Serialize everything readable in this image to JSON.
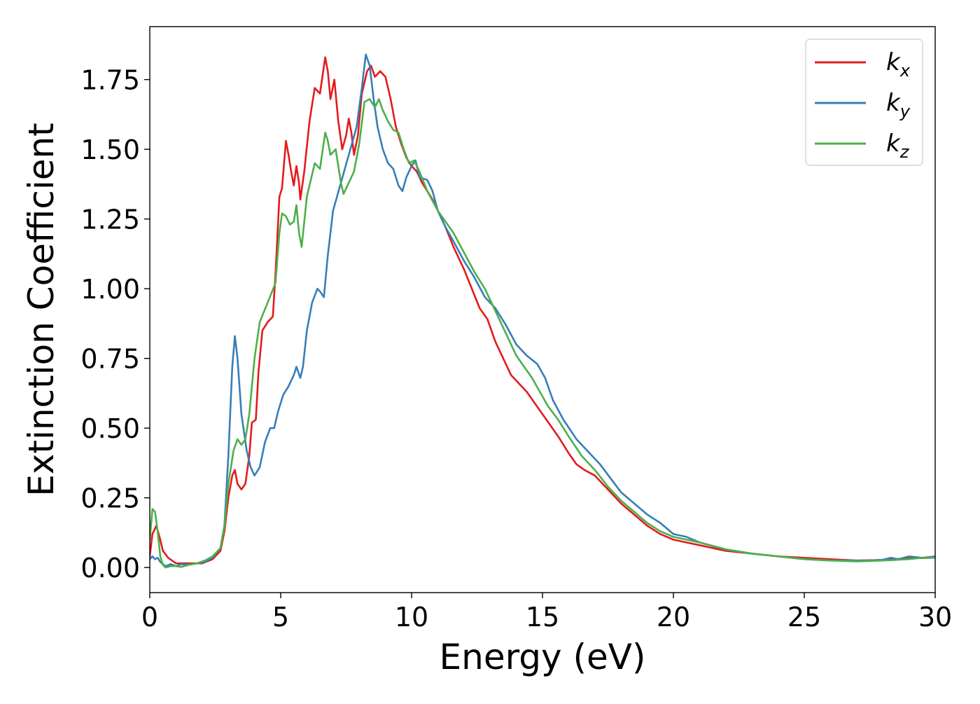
{
  "chart_data": {
    "type": "line",
    "title": "",
    "xlabel": "Energy (eV)",
    "ylabel": "Extinction Coefficient",
    "xlim": [
      0,
      30
    ],
    "ylim": [
      -0.09,
      1.94
    ],
    "xticks": [
      0,
      5,
      10,
      15,
      20,
      25,
      30
    ],
    "xtick_labels": [
      "0",
      "5",
      "10",
      "15",
      "20",
      "25",
      "30"
    ],
    "yticks": [
      0.0,
      0.25,
      0.5,
      0.75,
      1.0,
      1.25,
      1.5,
      1.75
    ],
    "ytick_labels": [
      "0.00",
      "0.25",
      "0.50",
      "0.75",
      "1.00",
      "1.25",
      "1.50",
      "1.75"
    ],
    "grid": false,
    "legend": {
      "position": "top-right"
    },
    "series": [
      {
        "name": "k_x",
        "legend_base": "k",
        "legend_sub": "x",
        "color": "#e41a1c",
        "points": [
          [
            0,
            0.04
          ],
          [
            0.1,
            0.12
          ],
          [
            0.25,
            0.15
          ],
          [
            0.4,
            0.1
          ],
          [
            0.5,
            0.06
          ],
          [
            0.7,
            0.035
          ],
          [
            1.0,
            0.015
          ],
          [
            1.3,
            0.015
          ],
          [
            1.6,
            0.015
          ],
          [
            2.0,
            0.015
          ],
          [
            2.4,
            0.03
          ],
          [
            2.7,
            0.06
          ],
          [
            2.85,
            0.13
          ],
          [
            3.0,
            0.25
          ],
          [
            3.15,
            0.33
          ],
          [
            3.25,
            0.35
          ],
          [
            3.35,
            0.3
          ],
          [
            3.5,
            0.28
          ],
          [
            3.65,
            0.3
          ],
          [
            3.8,
            0.4
          ],
          [
            3.9,
            0.52
          ],
          [
            4.05,
            0.53
          ],
          [
            4.15,
            0.7
          ],
          [
            4.3,
            0.85
          ],
          [
            4.5,
            0.88
          ],
          [
            4.7,
            0.9
          ],
          [
            4.8,
            1.05
          ],
          [
            4.95,
            1.33
          ],
          [
            5.05,
            1.36
          ],
          [
            5.2,
            1.53
          ],
          [
            5.3,
            1.48
          ],
          [
            5.4,
            1.42
          ],
          [
            5.5,
            1.37
          ],
          [
            5.6,
            1.44
          ],
          [
            5.7,
            1.38
          ],
          [
            5.75,
            1.32
          ],
          [
            5.9,
            1.42
          ],
          [
            6.1,
            1.6
          ],
          [
            6.3,
            1.72
          ],
          [
            6.5,
            1.7
          ],
          [
            6.7,
            1.83
          ],
          [
            6.8,
            1.78
          ],
          [
            6.9,
            1.68
          ],
          [
            7.05,
            1.75
          ],
          [
            7.2,
            1.6
          ],
          [
            7.35,
            1.5
          ],
          [
            7.5,
            1.55
          ],
          [
            7.6,
            1.61
          ],
          [
            7.7,
            1.56
          ],
          [
            7.8,
            1.48
          ],
          [
            7.95,
            1.55
          ],
          [
            8.1,
            1.7
          ],
          [
            8.3,
            1.78
          ],
          [
            8.45,
            1.8
          ],
          [
            8.6,
            1.76
          ],
          [
            8.8,
            1.78
          ],
          [
            9.0,
            1.76
          ],
          [
            9.2,
            1.68
          ],
          [
            9.4,
            1.58
          ],
          [
            9.6,
            1.52
          ],
          [
            9.8,
            1.47
          ],
          [
            10.0,
            1.44
          ],
          [
            10.2,
            1.42
          ],
          [
            10.4,
            1.38
          ],
          [
            10.6,
            1.35
          ],
          [
            10.8,
            1.32
          ],
          [
            11.0,
            1.28
          ],
          [
            11.3,
            1.22
          ],
          [
            11.6,
            1.15
          ],
          [
            12.0,
            1.07
          ],
          [
            12.3,
            1.0
          ],
          [
            12.6,
            0.93
          ],
          [
            12.9,
            0.89
          ],
          [
            13.2,
            0.81
          ],
          [
            13.5,
            0.75
          ],
          [
            13.8,
            0.69
          ],
          [
            14.1,
            0.66
          ],
          [
            14.4,
            0.63
          ],
          [
            14.7,
            0.59
          ],
          [
            15.0,
            0.55
          ],
          [
            15.3,
            0.51
          ],
          [
            15.6,
            0.47
          ],
          [
            16.0,
            0.41
          ],
          [
            16.3,
            0.37
          ],
          [
            16.6,
            0.35
          ],
          [
            17.0,
            0.33
          ],
          [
            17.5,
            0.28
          ],
          [
            18.0,
            0.23
          ],
          [
            18.5,
            0.19
          ],
          [
            19.0,
            0.15
          ],
          [
            19.5,
            0.12
          ],
          [
            20.0,
            0.1
          ],
          [
            20.5,
            0.09
          ],
          [
            21.0,
            0.08
          ],
          [
            22.0,
            0.06
          ],
          [
            23.0,
            0.05
          ],
          [
            24.0,
            0.04
          ],
          [
            25.0,
            0.035
          ],
          [
            26.0,
            0.03
          ],
          [
            27.0,
            0.025
          ],
          [
            28.0,
            0.027
          ],
          [
            29.0,
            0.033
          ],
          [
            30.0,
            0.035
          ]
        ]
      },
      {
        "name": "k_y",
        "legend_base": "k",
        "legend_sub": "y",
        "color": "#377eb8",
        "points": [
          [
            0,
            0.03
          ],
          [
            0.1,
            0.04
          ],
          [
            0.2,
            0.03
          ],
          [
            0.3,
            0.035
          ],
          [
            0.4,
            0.02
          ],
          [
            0.6,
            0.005
          ],
          [
            0.8,
            0.012
          ],
          [
            1.0,
            0.005
          ],
          [
            1.2,
            0.012
          ],
          [
            1.5,
            0.01
          ],
          [
            1.8,
            0.015
          ],
          [
            2.1,
            0.02
          ],
          [
            2.4,
            0.035
          ],
          [
            2.7,
            0.07
          ],
          [
            2.85,
            0.15
          ],
          [
            3.0,
            0.4
          ],
          [
            3.15,
            0.72
          ],
          [
            3.25,
            0.83
          ],
          [
            3.35,
            0.75
          ],
          [
            3.5,
            0.55
          ],
          [
            3.7,
            0.42
          ],
          [
            3.85,
            0.36
          ],
          [
            4.0,
            0.33
          ],
          [
            4.2,
            0.36
          ],
          [
            4.4,
            0.45
          ],
          [
            4.6,
            0.5
          ],
          [
            4.75,
            0.5
          ],
          [
            4.9,
            0.56
          ],
          [
            5.1,
            0.62
          ],
          [
            5.3,
            0.65
          ],
          [
            5.5,
            0.69
          ],
          [
            5.6,
            0.72
          ],
          [
            5.75,
            0.68
          ],
          [
            5.85,
            0.72
          ],
          [
            6.0,
            0.85
          ],
          [
            6.2,
            0.95
          ],
          [
            6.4,
            1.0
          ],
          [
            6.5,
            0.99
          ],
          [
            6.65,
            0.97
          ],
          [
            6.8,
            1.12
          ],
          [
            7.0,
            1.28
          ],
          [
            7.3,
            1.38
          ],
          [
            7.6,
            1.48
          ],
          [
            7.9,
            1.58
          ],
          [
            8.1,
            1.72
          ],
          [
            8.25,
            1.84
          ],
          [
            8.4,
            1.8
          ],
          [
            8.55,
            1.68
          ],
          [
            8.7,
            1.58
          ],
          [
            8.9,
            1.5
          ],
          [
            9.1,
            1.45
          ],
          [
            9.3,
            1.43
          ],
          [
            9.5,
            1.37
          ],
          [
            9.65,
            1.35
          ],
          [
            9.8,
            1.4
          ],
          [
            10.0,
            1.44
          ],
          [
            10.15,
            1.46
          ],
          [
            10.3,
            1.4
          ],
          [
            10.6,
            1.39
          ],
          [
            10.8,
            1.35
          ],
          [
            11.0,
            1.28
          ],
          [
            11.3,
            1.22
          ],
          [
            11.6,
            1.17
          ],
          [
            12.0,
            1.1
          ],
          [
            12.4,
            1.04
          ],
          [
            12.8,
            0.97
          ],
          [
            13.2,
            0.93
          ],
          [
            13.6,
            0.87
          ],
          [
            14.0,
            0.8
          ],
          [
            14.4,
            0.76
          ],
          [
            14.8,
            0.73
          ],
          [
            15.1,
            0.68
          ],
          [
            15.4,
            0.6
          ],
          [
            15.8,
            0.53
          ],
          [
            16.3,
            0.46
          ],
          [
            16.8,
            0.41
          ],
          [
            17.2,
            0.37
          ],
          [
            17.6,
            0.32
          ],
          [
            18.0,
            0.27
          ],
          [
            18.5,
            0.23
          ],
          [
            19.0,
            0.19
          ],
          [
            19.5,
            0.16
          ],
          [
            20.0,
            0.12
          ],
          [
            20.5,
            0.11
          ],
          [
            21.0,
            0.09
          ],
          [
            22.0,
            0.065
          ],
          [
            23.0,
            0.05
          ],
          [
            24.0,
            0.04
          ],
          [
            25.0,
            0.03
          ],
          [
            26.0,
            0.025
          ],
          [
            27.0,
            0.025
          ],
          [
            27.5,
            0.025
          ],
          [
            28.0,
            0.028
          ],
          [
            28.3,
            0.035
          ],
          [
            28.6,
            0.03
          ],
          [
            29.0,
            0.04
          ],
          [
            29.5,
            0.035
          ],
          [
            30.0,
            0.04
          ]
        ]
      },
      {
        "name": "k_z",
        "legend_base": "k",
        "legend_sub": "z",
        "color": "#4daf4a",
        "points": [
          [
            0,
            0.1
          ],
          [
            0.1,
            0.21
          ],
          [
            0.2,
            0.2
          ],
          [
            0.3,
            0.13
          ],
          [
            0.4,
            0.04
          ],
          [
            0.5,
            0.01
          ],
          [
            0.6,
            0.0
          ],
          [
            0.8,
            0.005
          ],
          [
            1.0,
            0.005
          ],
          [
            1.2,
            0.002
          ],
          [
            1.5,
            0.01
          ],
          [
            1.8,
            0.015
          ],
          [
            2.1,
            0.025
          ],
          [
            2.4,
            0.04
          ],
          [
            2.7,
            0.07
          ],
          [
            2.85,
            0.15
          ],
          [
            3.0,
            0.3
          ],
          [
            3.2,
            0.42
          ],
          [
            3.35,
            0.46
          ],
          [
            3.5,
            0.44
          ],
          [
            3.65,
            0.46
          ],
          [
            3.8,
            0.55
          ],
          [
            4.0,
            0.75
          ],
          [
            4.2,
            0.88
          ],
          [
            4.5,
            0.95
          ],
          [
            4.8,
            1.02
          ],
          [
            4.95,
            1.2
          ],
          [
            5.05,
            1.27
          ],
          [
            5.2,
            1.26
          ],
          [
            5.35,
            1.23
          ],
          [
            5.5,
            1.24
          ],
          [
            5.6,
            1.3
          ],
          [
            5.7,
            1.2
          ],
          [
            5.8,
            1.15
          ],
          [
            6.0,
            1.33
          ],
          [
            6.3,
            1.45
          ],
          [
            6.5,
            1.43
          ],
          [
            6.7,
            1.56
          ],
          [
            6.8,
            1.53
          ],
          [
            6.9,
            1.48
          ],
          [
            7.1,
            1.5
          ],
          [
            7.3,
            1.38
          ],
          [
            7.4,
            1.34
          ],
          [
            7.6,
            1.38
          ],
          [
            7.8,
            1.42
          ],
          [
            8.0,
            1.52
          ],
          [
            8.2,
            1.67
          ],
          [
            8.4,
            1.68
          ],
          [
            8.6,
            1.65
          ],
          [
            8.75,
            1.68
          ],
          [
            8.9,
            1.64
          ],
          [
            9.1,
            1.6
          ],
          [
            9.3,
            1.57
          ],
          [
            9.5,
            1.56
          ],
          [
            9.7,
            1.5
          ],
          [
            9.9,
            1.45
          ],
          [
            10.1,
            1.46
          ],
          [
            10.3,
            1.42
          ],
          [
            10.6,
            1.35
          ],
          [
            11.0,
            1.28
          ],
          [
            11.3,
            1.24
          ],
          [
            11.6,
            1.2
          ],
          [
            12.0,
            1.13
          ],
          [
            12.4,
            1.06
          ],
          [
            12.8,
            1.0
          ],
          [
            13.2,
            0.92
          ],
          [
            13.6,
            0.84
          ],
          [
            14.0,
            0.76
          ],
          [
            14.3,
            0.72
          ],
          [
            14.6,
            0.68
          ],
          [
            14.9,
            0.63
          ],
          [
            15.2,
            0.58
          ],
          [
            15.6,
            0.53
          ],
          [
            16.0,
            0.47
          ],
          [
            16.5,
            0.4
          ],
          [
            17.0,
            0.35
          ],
          [
            17.5,
            0.29
          ],
          [
            18.0,
            0.24
          ],
          [
            18.5,
            0.2
          ],
          [
            19.0,
            0.16
          ],
          [
            19.5,
            0.13
          ],
          [
            20.0,
            0.11
          ],
          [
            20.5,
            0.1
          ],
          [
            21.0,
            0.09
          ],
          [
            22.0,
            0.065
          ],
          [
            23.0,
            0.05
          ],
          [
            24.0,
            0.04
          ],
          [
            25.0,
            0.03
          ],
          [
            26.0,
            0.025
          ],
          [
            27.0,
            0.022
          ],
          [
            28.0,
            0.025
          ],
          [
            29.0,
            0.03
          ],
          [
            29.5,
            0.035
          ],
          [
            30.0,
            0.035
          ]
        ]
      }
    ]
  }
}
